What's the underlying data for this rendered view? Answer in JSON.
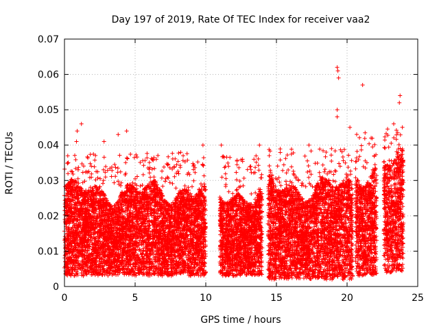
{
  "chart_data": {
    "type": "scatter",
    "title": "Day 197 of 2019, Rate Of TEC Index for receiver vaa2",
    "xlabel": "GPS time / hours",
    "ylabel": "ROTI / TECUs",
    "xlim": [
      0,
      25
    ],
    "ylim": [
      0,
      0.07
    ],
    "x_ticks": [
      0,
      5,
      10,
      15,
      20,
      25
    ],
    "y_ticks": [
      0,
      0.01,
      0.02,
      0.03,
      0.04,
      0.05,
      0.06,
      0.07
    ],
    "x_tick_labels": [
      "0",
      "5",
      "10",
      "15",
      "20",
      "25"
    ],
    "y_tick_labels": [
      "0",
      "0.01",
      "0.02",
      "0.03",
      "0.04",
      "0.05",
      "0.06",
      "0.07"
    ],
    "grid": true,
    "marker": "+",
    "series": [
      {
        "name": "ROTI",
        "color": "#ff0000",
        "data_segments": [
          {
            "x_start": 0.0,
            "x_end": 10.0,
            "typical_min": 0.003,
            "typical_max": 0.027
          },
          {
            "x_start": 11.0,
            "x_end": 14.0,
            "typical_min": 0.003,
            "typical_max": 0.026
          },
          {
            "x_start": 14.4,
            "x_end": 20.4,
            "typical_min": 0.002,
            "typical_max": 0.028
          },
          {
            "x_start": 20.6,
            "x_end": 22.1,
            "typical_min": 0.003,
            "typical_max": 0.033
          },
          {
            "x_start": 22.6,
            "x_end": 24.0,
            "typical_min": 0.004,
            "typical_max": 0.035
          }
        ],
        "notable_points": [
          [
            1.2,
            0.046
          ],
          [
            0.9,
            0.044
          ],
          [
            0.85,
            0.041
          ],
          [
            2.8,
            0.041
          ],
          [
            3.8,
            0.043
          ],
          [
            4.4,
            0.044
          ],
          [
            9.8,
            0.04
          ],
          [
            11.1,
            0.04
          ],
          [
            13.8,
            0.04
          ],
          [
            12.6,
            0.036
          ],
          [
            19.3,
            0.062
          ],
          [
            19.35,
            0.061
          ],
          [
            19.4,
            0.059
          ],
          [
            19.3,
            0.05
          ],
          [
            19.3,
            0.048
          ],
          [
            20.2,
            0.045
          ],
          [
            21.1,
            0.057
          ],
          [
            23.75,
            0.054
          ],
          [
            23.7,
            0.052
          ],
          [
            23.3,
            0.046
          ],
          [
            17.3,
            0.04
          ],
          [
            18.9,
            0.039
          ],
          [
            21.7,
            0.042
          ],
          [
            8.4,
            0.037
          ],
          [
            6.5,
            0.036
          ]
        ]
      }
    ]
  }
}
